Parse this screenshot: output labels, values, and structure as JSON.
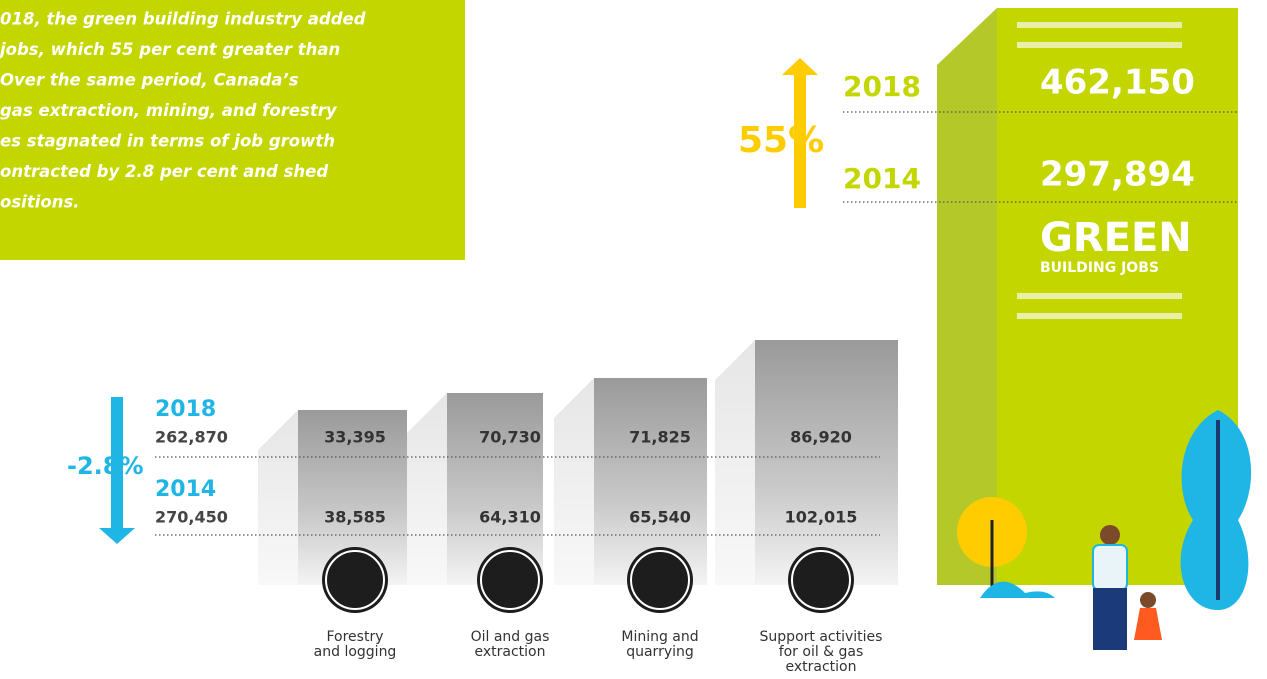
{
  "intro": {
    "lines": [
      "018, the green building industry added",
      " jobs, which 55 per cent greater than",
      " Over the same period, Canada’s",
      "gas extraction, mining, and forestry",
      "es stagnated in terms of job growth",
      "ontracted by 2.8 per cent and shed",
      "ositions."
    ]
  },
  "green": {
    "percent": "55%",
    "rows": [
      {
        "year": "2018",
        "value": "462,150"
      },
      {
        "year": "2014",
        "value": "297,894"
      }
    ],
    "title": "GREEN",
    "subtitle": "BUILDING JOBS"
  },
  "resource": {
    "percent": "-2.8%",
    "rows": [
      {
        "year": "2018",
        "total": "262,870"
      },
      {
        "year": "2014",
        "total": "270,450"
      }
    ],
    "sectors": [
      {
        "name": [
          "Forestry",
          "and logging"
        ],
        "values": [
          "33,395",
          "38,585"
        ]
      },
      {
        "name": [
          "Oil and gas",
          "extraction"
        ],
        "values": [
          "70,730",
          "64,310"
        ]
      },
      {
        "name": [
          "Mining and",
          "quarrying"
        ],
        "values": [
          "71,825",
          "65,540"
        ]
      },
      {
        "name": [
          "Support activities",
          "for oil & gas",
          "extraction"
        ],
        "values": [
          "86,920",
          "102,015"
        ]
      }
    ]
  }
}
